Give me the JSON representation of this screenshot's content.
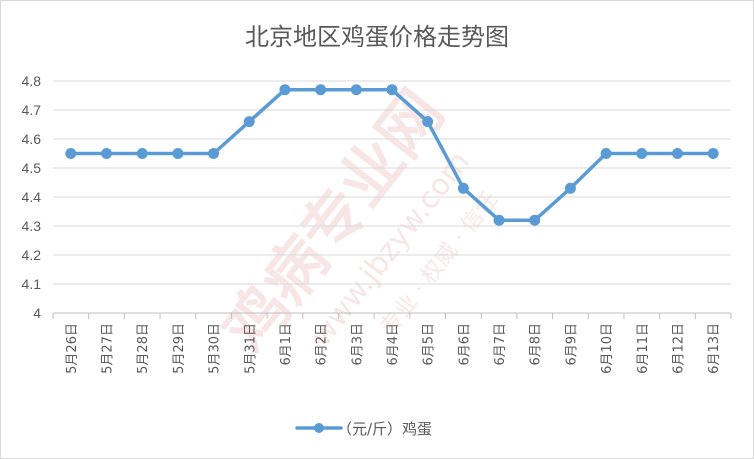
{
  "chart_data": {
    "type": "line",
    "title": "北京地区鸡蛋价格走势图",
    "categories": [
      "5月26日",
      "5月27日",
      "5月28日",
      "5月29日",
      "5月30日",
      "5月31日",
      "6月1日",
      "6月2日",
      "6月3日",
      "6月4日",
      "6月5日",
      "6月6日",
      "6月7日",
      "6月8日",
      "6月9日",
      "6月10日",
      "6月11日",
      "6月12日",
      "6月13日"
    ],
    "series": [
      {
        "name": "（元/斤）鸡蛋",
        "color": "#5b9bd5",
        "values": [
          4.55,
          4.55,
          4.55,
          4.55,
          4.55,
          4.66,
          4.77,
          4.77,
          4.77,
          4.77,
          4.66,
          4.43,
          4.32,
          4.32,
          4.43,
          4.55,
          4.55,
          4.55,
          4.55
        ]
      }
    ],
    "y_ticks": [
      "4.8",
      "4.7",
      "4.6",
      "4.5",
      "4.4",
      "4.3",
      "4.2",
      "4.1",
      "4"
    ],
    "ylim": [
      4,
      4.8
    ],
    "xlabel": "",
    "ylabel": "",
    "grid": true,
    "legend_position": "bottom",
    "watermark": {
      "main": "鸡病专业网",
      "url": "www.jbzyw.com",
      "slogan": "专业 · 权威 · 信任"
    }
  }
}
